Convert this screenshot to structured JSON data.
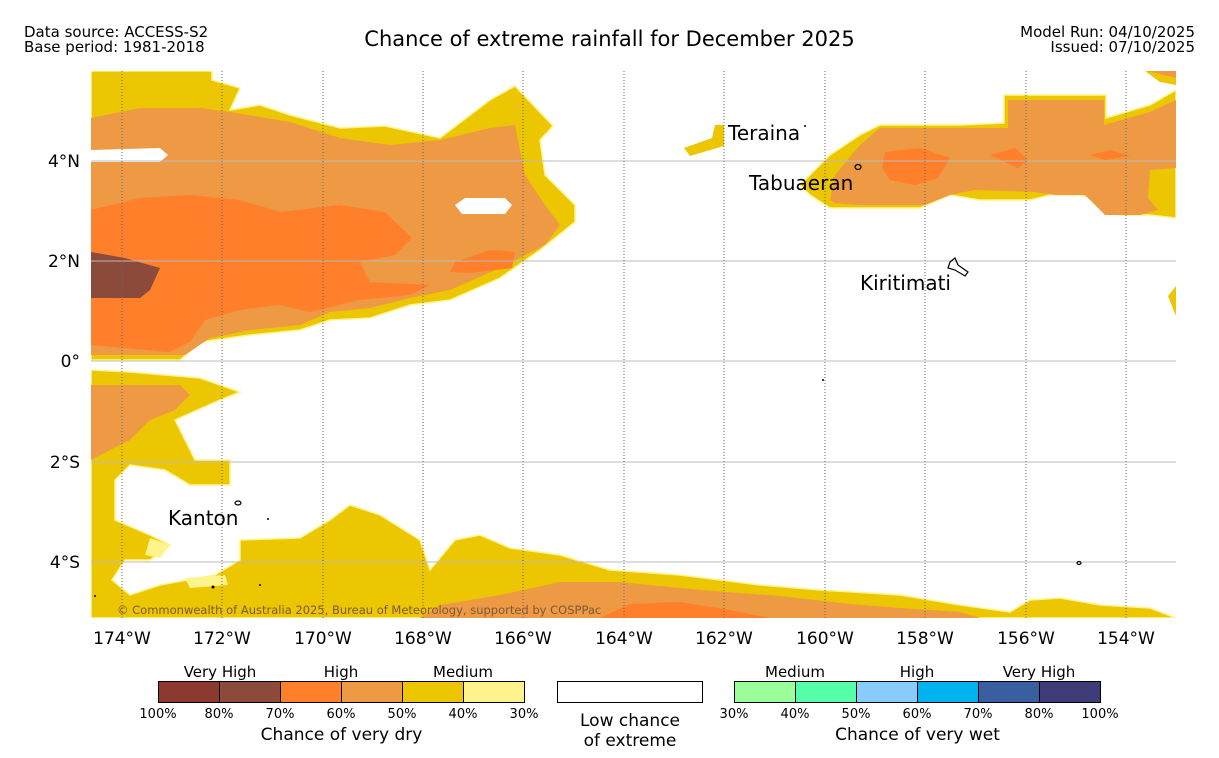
{
  "header": {
    "data_source": "Data source: ACCESS-S2",
    "base_period": "Base period: 1981-2018",
    "title": "Chance of extreme rainfall for December 2025",
    "model_run": "Model Run: 04/10/2025",
    "issued": "Issued: 07/10/2025"
  },
  "map": {
    "lat_labels": [
      "4°N",
      "2°N",
      "0°",
      "2°S",
      "4°S"
    ],
    "lon_labels": [
      "174°W",
      "172°W",
      "170°W",
      "168°W",
      "166°W",
      "164°W",
      "162°W",
      "160°W",
      "158°W",
      "156°W",
      "154°W"
    ],
    "places": {
      "teraina": "Teraina",
      "tabuaeran": "Tabuaeran",
      "kiritimati": "Kiritimati",
      "kanton": "Kanton"
    },
    "copyright": "© Commonwealth of Australia 2025, Bureau of Meteorology, supported by COSPPac",
    "colors": {
      "very_high_dry": "#8c4a3a",
      "high_dry": "#ff7f2a",
      "high_dry_light": "#ee9944",
      "medium_dry": "#ecc600",
      "medium_dry_light": "#fff48c"
    }
  },
  "legend": {
    "dry": {
      "categories": [
        "Very High",
        "High",
        "Medium"
      ],
      "swatches": [
        "#8c3a30",
        "#8c4a3a",
        "#ff7f2a",
        "#ee9944",
        "#ecc600",
        "#fff48c"
      ],
      "ticks": [
        "100%",
        "80%",
        "70%",
        "60%",
        "50%",
        "40%",
        "30%"
      ],
      "caption": "Chance of very dry"
    },
    "low": {
      "line1": "Low chance",
      "line2": "of extreme",
      "color": "#ffffff"
    },
    "wet": {
      "categories": [
        "Medium",
        "High",
        "Very High"
      ],
      "swatches": [
        "#9aff9a",
        "#55ffaa",
        "#88ccff",
        "#00b3ee",
        "#3a5fa0",
        "#3f3a78"
      ],
      "ticks": [
        "30%",
        "40%",
        "50%",
        "60%",
        "70%",
        "80%",
        "100%"
      ],
      "caption": "Chance of very wet"
    }
  }
}
